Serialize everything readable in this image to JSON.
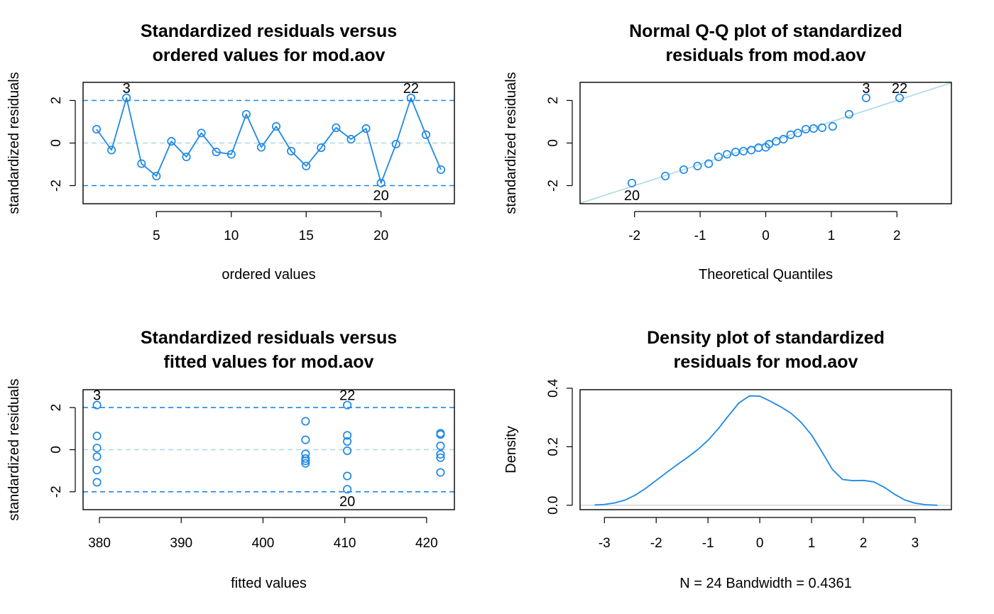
{
  "colors": {
    "series": "#1E88E5",
    "reference": "#ADD8E6",
    "bounds": "#1E88E5",
    "text": "#000000"
  },
  "chart_data": [
    {
      "type": "line",
      "title_line1": "Standardized residuals versus",
      "title_line2": "ordered values for mod.aov",
      "xlabel": "ordered values",
      "ylabel": "standardized residuals",
      "xlim": [
        0.1,
        24.9
      ],
      "ylim": [
        -2.85,
        2.85
      ],
      "xticks": [
        5,
        10,
        15,
        20
      ],
      "yticks": [
        -2,
        0,
        2
      ],
      "x": [
        1,
        2,
        3,
        4,
        5,
        6,
        7,
        8,
        9,
        10,
        11,
        12,
        13,
        14,
        15,
        16,
        17,
        18,
        19,
        20,
        21,
        22,
        23,
        24
      ],
      "y": [
        0.65,
        -0.33,
        2.12,
        -0.97,
        -1.55,
        0.08,
        -0.65,
        0.47,
        -0.42,
        -0.53,
        1.35,
        -0.2,
        0.78,
        -0.38,
        -1.08,
        -0.22,
        0.72,
        0.18,
        0.68,
        -1.88,
        -0.05,
        2.12,
        0.39,
        -1.25
      ],
      "hlines": [
        {
          "y": 2,
          "style": "dashed",
          "color": "#1E88E5"
        },
        {
          "y": -2,
          "style": "dashed",
          "color": "#1E88E5"
        },
        {
          "y": 0,
          "style": "dashed",
          "color": "#ADD8E6"
        }
      ],
      "point_labels": [
        {
          "x": 3,
          "y": 2.12,
          "text": "3",
          "pos": "above"
        },
        {
          "x": 22,
          "y": 2.12,
          "text": "22",
          "pos": "above"
        },
        {
          "x": 20,
          "y": -1.88,
          "text": "20",
          "pos": "below"
        }
      ]
    },
    {
      "type": "scatter",
      "title_line1": "Normal Q-Q plot of standardized",
      "title_line2": "residuals from mod.aov",
      "xlabel": "Theoretical Quantiles",
      "ylabel": "standardized residuals",
      "xlim": [
        -2.83,
        2.83
      ],
      "ylim": [
        -2.85,
        2.85
      ],
      "xticks": [
        -2,
        -1,
        0,
        1,
        2
      ],
      "yticks": [
        -2,
        0,
        2
      ],
      "x": [
        -2.04,
        -1.53,
        -1.25,
        -1.04,
        -0.87,
        -0.72,
        -0.59,
        -0.46,
        -0.34,
        -0.22,
        -0.11,
        0.0,
        0.05,
        0.16,
        0.27,
        0.38,
        0.49,
        0.61,
        0.73,
        0.86,
        1.02,
        1.27,
        1.53,
        2.04
      ],
      "y": [
        -1.88,
        -1.55,
        -1.25,
        -1.08,
        -0.97,
        -0.65,
        -0.53,
        -0.42,
        -0.38,
        -0.33,
        -0.22,
        -0.2,
        -0.05,
        0.08,
        0.18,
        0.39,
        0.47,
        0.65,
        0.68,
        0.72,
        0.78,
        1.35,
        2.12,
        2.12
      ],
      "reference_line": {
        "intercept": 0.0,
        "slope": 1.0,
        "color": "#ADD8E6"
      },
      "point_labels": [
        {
          "x": 1.53,
          "y": 2.12,
          "text": "3",
          "pos": "above"
        },
        {
          "x": 2.04,
          "y": 2.12,
          "text": "22",
          "pos": "above"
        },
        {
          "x": -2.04,
          "y": -1.88,
          "text": "20",
          "pos": "below"
        }
      ]
    },
    {
      "type": "scatter",
      "title_line1": "Standardized residuals versus",
      "title_line2": "fitted values for mod.aov",
      "xlabel": "fitted values",
      "ylabel": "standardized residuals",
      "xlim": [
        378.0,
        423.4
      ],
      "ylim": [
        -2.85,
        2.85
      ],
      "xticks": [
        380,
        390,
        400,
        410,
        420
      ],
      "yticks": [
        -2,
        0,
        2
      ],
      "x": [
        379.7,
        379.7,
        379.7,
        379.7,
        379.7,
        379.7,
        405.2,
        405.2,
        405.2,
        405.2,
        405.2,
        405.2,
        410.3,
        410.3,
        410.3,
        410.3,
        410.3,
        410.3,
        421.7,
        421.7,
        421.7,
        421.7,
        421.7,
        421.7
      ],
      "y": [
        2.12,
        0.65,
        0.08,
        -0.33,
        -0.97,
        -1.55,
        1.35,
        0.47,
        -0.2,
        -0.42,
        -0.53,
        -0.65,
        2.12,
        0.68,
        0.39,
        -0.05,
        -1.25,
        -1.88,
        0.78,
        0.72,
        0.18,
        -0.22,
        -0.38,
        -1.08
      ],
      "hlines": [
        {
          "y": 2,
          "style": "dashed",
          "color": "#1E88E5"
        },
        {
          "y": -2,
          "style": "dashed",
          "color": "#1E88E5"
        },
        {
          "y": 0,
          "style": "dashed",
          "color": "#ADD8E6"
        }
      ],
      "point_labels": [
        {
          "x": 379.7,
          "y": 2.12,
          "text": "3",
          "pos": "above"
        },
        {
          "x": 410.3,
          "y": 2.12,
          "text": "22",
          "pos": "above"
        },
        {
          "x": 410.3,
          "y": -1.88,
          "text": "20",
          "pos": "below"
        }
      ]
    },
    {
      "type": "line",
      "title_line1": "Density plot of standardized",
      "title_line2": "residuals for mod.aov",
      "xlabel": "N = 24   Bandwidth = 0.4361",
      "ylabel": "Density",
      "xlim": [
        -3.47,
        3.7
      ],
      "ylim": [
        -0.015,
        0.395
      ],
      "xticks": [
        -3,
        -2,
        -1,
        0,
        1,
        2,
        3
      ],
      "yticks": [
        0.0,
        0.2,
        0.4
      ],
      "ytick_labels": [
        "0.0",
        "0.2",
        "0.4"
      ],
      "x": [
        -3.19,
        -3.0,
        -2.8,
        -2.6,
        -2.4,
        -2.2,
        -2.0,
        -1.8,
        -1.6,
        -1.4,
        -1.2,
        -1.0,
        -0.8,
        -0.6,
        -0.4,
        -0.2,
        0.0,
        0.2,
        0.4,
        0.6,
        0.8,
        1.0,
        1.2,
        1.4,
        1.6,
        1.8,
        2.0,
        2.2,
        2.4,
        2.6,
        2.8,
        3.0,
        3.2,
        3.43
      ],
      "y": [
        0.001,
        0.003,
        0.008,
        0.018,
        0.035,
        0.058,
        0.085,
        0.112,
        0.138,
        0.163,
        0.19,
        0.222,
        0.262,
        0.307,
        0.35,
        0.374,
        0.373,
        0.356,
        0.337,
        0.315,
        0.283,
        0.24,
        0.183,
        0.123,
        0.088,
        0.084,
        0.085,
        0.08,
        0.062,
        0.038,
        0.018,
        0.007,
        0.002,
        0.0
      ],
      "baseline": {
        "y": 0,
        "color": "#D3D3D3"
      }
    }
  ]
}
